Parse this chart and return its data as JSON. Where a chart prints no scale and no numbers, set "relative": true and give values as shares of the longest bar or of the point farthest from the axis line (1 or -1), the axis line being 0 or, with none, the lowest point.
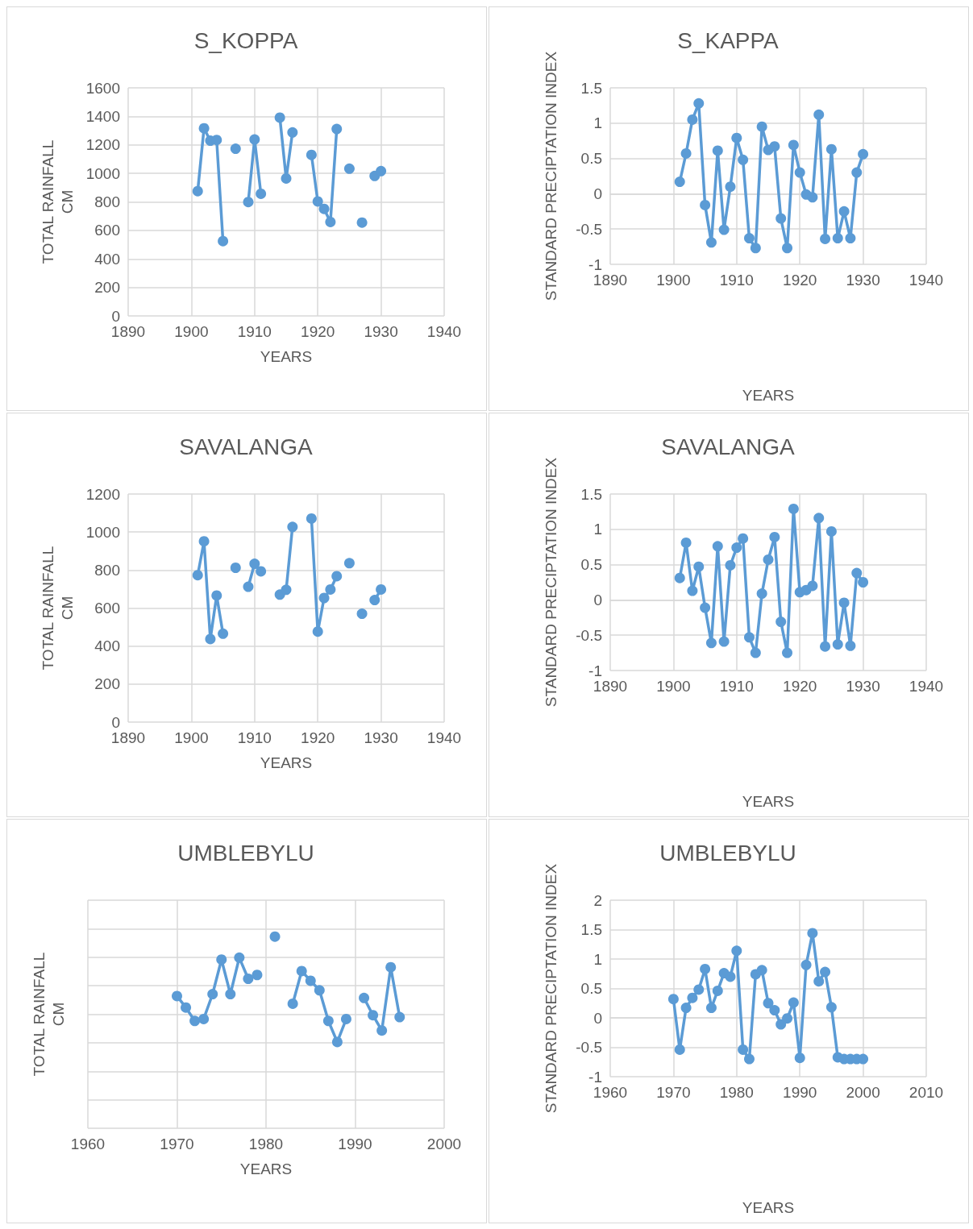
{
  "chart_data": [
    {
      "type": "line",
      "title": "S_KOPPA",
      "xlabel": "YEARS",
      "ylabel": "TOTAL RAINFALL\nCM",
      "x": [
        1901,
        1902,
        1903,
        1904,
        1905,
        1906,
        1907,
        1908,
        1909,
        1910,
        1911,
        1912,
        1913,
        1914,
        1915,
        1916,
        1917,
        1918,
        1919,
        1920,
        1921,
        1922,
        1923,
        1924,
        1925,
        1926,
        1927,
        1928,
        1929,
        1930
      ],
      "series": [
        {
          "color": "#5b9bd5",
          "values": [
            875,
            1316,
            1229,
            1234,
            525,
            null,
            1173,
            null,
            799,
            1238,
            857,
            null,
            null,
            1391,
            964,
            1287,
            null,
            null,
            1130,
            803,
            751,
            659,
            1311,
            null,
            1033,
            null,
            655,
            null,
            982,
            1016
          ]
        }
      ],
      "xlim": [
        1890,
        1940
      ],
      "xticks": [
        1890,
        1900,
        1910,
        1920,
        1930,
        1940
      ],
      "ylim": [
        0,
        1600
      ],
      "yticks": [
        0,
        200,
        400,
        600,
        800,
        1000,
        1200,
        1400,
        1600
      ],
      "grid": true,
      "marker": "circle",
      "line_style": "solid"
    },
    {
      "type": "line",
      "title": "S_KAPPA",
      "xlabel": "YEARS",
      "ylabel": "STANDARD PRECIPTATION INDEX",
      "x": [
        1901,
        1902,
        1903,
        1904,
        1905,
        1906,
        1907,
        1908,
        1909,
        1910,
        1911,
        1912,
        1913,
        1914,
        1915,
        1916,
        1917,
        1918,
        1919,
        1920,
        1921,
        1922,
        1923,
        1924,
        1925,
        1926,
        1927,
        1928,
        1929,
        1930
      ],
      "series": [
        {
          "color": "#5b9bd5",
          "values": [
            0.17,
            0.57,
            1.05,
            1.28,
            -0.16,
            -0.69,
            0.61,
            -0.51,
            0.1,
            0.79,
            0.48,
            -0.63,
            -0.77,
            0.95,
            0.62,
            0.67,
            -0.35,
            -0.77,
            0.69,
            0.3,
            -0.01,
            -0.05,
            1.12,
            -0.64,
            0.63,
            -0.63,
            -0.25,
            -0.63,
            0.3,
            0.56
          ]
        }
      ],
      "xlim": [
        1890,
        1940
      ],
      "xticks": [
        1890,
        1900,
        1910,
        1920,
        1930,
        1940
      ],
      "ylim": [
        -1,
        1.5
      ],
      "yticks": [
        -1,
        -0.5,
        0,
        0.5,
        1,
        1.5
      ],
      "grid": true,
      "marker": "circle",
      "line_style": "solid"
    },
    {
      "type": "line",
      "title": "SAVALANGA",
      "xlabel": "YEARS",
      "ylabel": "TOTAL RAINFALL\nCM",
      "x": [
        1901,
        1902,
        1903,
        1904,
        1905,
        1906,
        1907,
        1908,
        1909,
        1910,
        1911,
        1912,
        1913,
        1914,
        1915,
        1916,
        1917,
        1918,
        1919,
        1920,
        1921,
        1922,
        1923,
        1924,
        1925,
        1926,
        1927,
        1928,
        1929,
        1930
      ],
      "series": [
        {
          "color": "#5b9bd5",
          "values": [
            773,
            951,
            437,
            666,
            465,
            null,
            812,
            null,
            712,
            833,
            793,
            null,
            null,
            671,
            696,
            1027,
            null,
            null,
            1071,
            476,
            653,
            698,
            768,
            null,
            836,
            null,
            570,
            null,
            642,
            698
          ]
        }
      ],
      "xlim": [
        1890,
        1940
      ],
      "xticks": [
        1890,
        1900,
        1910,
        1920,
        1930,
        1940
      ],
      "ylim": [
        0,
        1200
      ],
      "yticks": [
        0,
        200,
        400,
        600,
        800,
        1000,
        1200
      ],
      "grid": true,
      "marker": "circle",
      "line_style": "solid"
    },
    {
      "type": "line",
      "title": "SAVALANGA",
      "xlabel": "YEARS",
      "ylabel": "STANDARD PRECIPTATION INDEX",
      "x": [
        1901,
        1902,
        1903,
        1904,
        1905,
        1906,
        1907,
        1908,
        1909,
        1910,
        1911,
        1912,
        1913,
        1914,
        1915,
        1916,
        1917,
        1918,
        1919,
        1920,
        1921,
        1922,
        1923,
        1924,
        1925,
        1926,
        1927,
        1928,
        1929,
        1930
      ],
      "series": [
        {
          "color": "#5b9bd5",
          "values": [
            0.31,
            0.81,
            0.13,
            0.47,
            -0.11,
            -0.61,
            0.76,
            -0.59,
            0.49,
            0.74,
            0.87,
            -0.53,
            -0.75,
            0.09,
            0.57,
            0.89,
            -0.31,
            -0.75,
            1.29,
            0.11,
            0.14,
            0.2,
            1.16,
            -0.66,
            0.97,
            -0.63,
            -0.04,
            -0.65,
            0.38,
            0.25
          ]
        }
      ],
      "xlim": [
        1890,
        1940
      ],
      "xticks": [
        1890,
        1900,
        1910,
        1920,
        1930,
        1940
      ],
      "ylim": [
        -1,
        1.5
      ],
      "yticks": [
        -1,
        -0.5,
        0,
        0.5,
        1,
        1.5
      ],
      "grid": true,
      "marker": "circle",
      "line_style": "solid"
    },
    {
      "type": "line",
      "title": "UMBLEBYLU",
      "xlabel": "YEARS",
      "ylabel": "TOTAL RAINFALL\nCM",
      "relative": true,
      "x": [
        1970,
        1971,
        1972,
        1973,
        1974,
        1975,
        1976,
        1977,
        1978,
        1979,
        1980,
        1981,
        1982,
        1983,
        1984,
        1985,
        1986,
        1987,
        1988,
        1989,
        1990,
        1991,
        1992,
        1993,
        1994,
        1995
      ],
      "series": [
        {
          "color": "#5b9bd5",
          "values": [
            0.69,
            0.63,
            0.56,
            0.57,
            0.7,
            0.88,
            0.7,
            0.89,
            0.78,
            0.8,
            null,
            1,
            null,
            0.65,
            0.82,
            0.77,
            0.72,
            0.56,
            0.45,
            0.57,
            null,
            0.68,
            0.59,
            0.51,
            0.84,
            0.58
          ]
        }
      ],
      "xlim": [
        1960,
        2000
      ],
      "xticks": [
        1960,
        1970,
        1980,
        1990,
        2000
      ],
      "grid": true,
      "marker": "circle",
      "line_style": "solid"
    },
    {
      "type": "line",
      "title": "UMBLEBYLU",
      "xlabel": "YEARS",
      "ylabel": "STANDARD PRECIPTATION INDEX",
      "x": [
        1970,
        1971,
        1972,
        1973,
        1974,
        1975,
        1976,
        1977,
        1978,
        1979,
        1980,
        1981,
        1982,
        1983,
        1984,
        1985,
        1986,
        1987,
        1988,
        1989,
        1990,
        1991,
        1992,
        1993,
        1994,
        1995,
        1996,
        1997,
        1998,
        1999,
        2000
      ],
      "series": [
        {
          "color": "#5b9bd5",
          "values": [
            0.32,
            -0.54,
            0.17,
            0.34,
            0.48,
            0.83,
            0.17,
            0.46,
            0.76,
            0.7,
            1.14,
            -0.54,
            -0.7,
            0.74,
            0.81,
            0.25,
            0.13,
            -0.11,
            -0.01,
            0.26,
            -0.68,
            0.9,
            1.44,
            0.62,
            0.78,
            0.18,
            -0.67,
            -0.7,
            -0.7,
            -0.7,
            -0.7
          ]
        }
      ],
      "xlim": [
        1960,
        2010
      ],
      "xticks": [
        1960,
        1970,
        1980,
        1990,
        2000,
        2010
      ],
      "ylim": [
        -1,
        2
      ],
      "yticks": [
        -1,
        -0.5,
        0,
        0.5,
        1,
        1.5,
        2
      ],
      "grid": true,
      "marker": "circle",
      "line_style": "solid"
    }
  ]
}
